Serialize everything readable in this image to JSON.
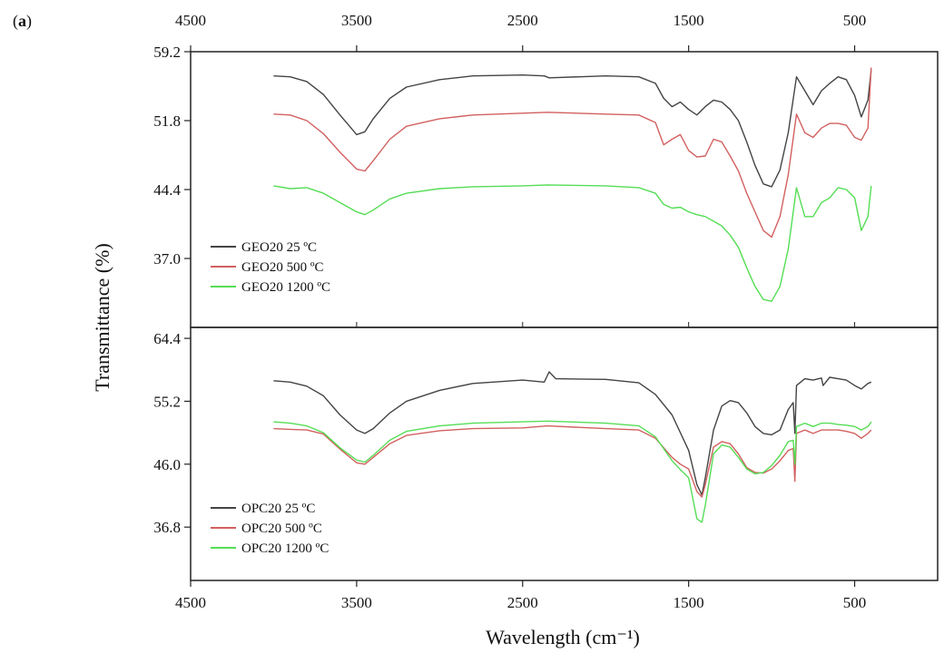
{
  "figure": {
    "panel_label_open": "(",
    "panel_label_letter": "a",
    "panel_label_close": ")"
  },
  "chart_data": {
    "type": "line",
    "xlabel": "Wavelength (cm⁻¹)",
    "ylabel": "Transmittance (%)",
    "x_reversed": true,
    "xlim": [
      4500,
      0
    ],
    "x_ticks": [
      4500,
      3500,
      2500,
      1500,
      500
    ],
    "x_tick_labels": [
      "4500",
      "3500",
      "2500",
      "1500",
      "500"
    ],
    "panels": [
      {
        "id": "top",
        "ylim": [
          29.6,
          59.2
        ],
        "y_ticks": [
          59.2,
          51.8,
          44.4,
          37.0
        ],
        "y_tick_labels": [
          "59.2",
          "51.8",
          "44.4",
          "37.0"
        ],
        "legend_position": "bottom-left",
        "series": [
          {
            "name": "GEO20 25 ºC",
            "color": "#444444",
            "x": [
              4000,
              3900,
              3800,
              3700,
              3600,
              3500,
              3450,
              3400,
              3300,
              3200,
              3000,
              2800,
              2500,
              2370,
              2340,
              2000,
              1800,
              1700,
              1650,
              1600,
              1550,
              1500,
              1450,
              1400,
              1350,
              1300,
              1250,
              1200,
              1150,
              1100,
              1050,
              1000,
              950,
              900,
              850,
              800,
              750,
              700,
              650,
              600,
              550,
              500,
              460,
              420,
              400
            ],
            "y": [
              56.6,
              56.5,
              56.0,
              54.6,
              52.4,
              50.3,
              50.6,
              52.0,
              54.2,
              55.4,
              56.2,
              56.6,
              56.7,
              56.6,
              56.4,
              56.6,
              56.5,
              55.8,
              54.2,
              53.3,
              53.8,
              53.0,
              52.4,
              53.3,
              54.0,
              53.8,
              53.0,
              51.8,
              49.5,
              47.0,
              45.0,
              44.7,
              46.5,
              50.5,
              56.5,
              55.0,
              53.5,
              55.0,
              55.8,
              56.5,
              56.2,
              54.5,
              52.2,
              54.0,
              57.2
            ]
          },
          {
            "name": "GEO20 500 ºC",
            "color": "#d26060",
            "x": [
              4000,
              3900,
              3800,
              3700,
              3600,
              3500,
              3450,
              3400,
              3300,
              3200,
              3000,
              2800,
              2500,
              2350,
              2000,
              1800,
              1700,
              1650,
              1600,
              1550,
              1500,
              1450,
              1400,
              1350,
              1300,
              1250,
              1200,
              1150,
              1100,
              1050,
              1000,
              950,
              900,
              850,
              800,
              750,
              700,
              650,
              600,
              550,
              500,
              460,
              420,
              400
            ],
            "y": [
              52.5,
              52.4,
              51.8,
              50.4,
              48.4,
              46.6,
              46.4,
              47.5,
              49.8,
              51.2,
              52.0,
              52.4,
              52.6,
              52.7,
              52.5,
              52.4,
              51.6,
              49.2,
              49.8,
              50.3,
              48.6,
              47.9,
              48.0,
              49.8,
              49.5,
              48.0,
              46.4,
              44.0,
              42.0,
              40.0,
              39.3,
              41.5,
              46.0,
              52.5,
              50.5,
              50.0,
              51.0,
              51.5,
              51.5,
              51.3,
              50.0,
              49.7,
              51.0,
              57.5
            ]
          },
          {
            "name": "GEO20 1200 ºC",
            "color": "#55dd55",
            "x": [
              4000,
              3900,
              3800,
              3700,
              3600,
              3500,
              3450,
              3400,
              3300,
              3200,
              3000,
              2800,
              2500,
              2350,
              2000,
              1800,
              1700,
              1650,
              1600,
              1550,
              1500,
              1450,
              1400,
              1350,
              1300,
              1250,
              1200,
              1150,
              1100,
              1050,
              1000,
              950,
              900,
              850,
              800,
              750,
              700,
              650,
              600,
              550,
              500,
              460,
              420,
              400
            ],
            "y": [
              44.8,
              44.5,
              44.6,
              44.0,
              43.0,
              42.0,
              41.7,
              42.2,
              43.4,
              44.0,
              44.5,
              44.7,
              44.8,
              44.9,
              44.8,
              44.6,
              44.0,
              42.8,
              42.4,
              42.5,
              42.0,
              41.7,
              41.5,
              41.0,
              40.5,
              39.5,
              38.2,
              36.0,
              34.0,
              32.6,
              32.4,
              34.0,
              38.0,
              44.6,
              41.5,
              41.5,
              43.0,
              43.5,
              44.6,
              44.4,
              43.5,
              40.0,
              41.5,
              44.8
            ]
          }
        ]
      },
      {
        "id": "bottom",
        "ylim": [
          29.0,
          66.0
        ],
        "y_ticks": [
          64.4,
          55.2,
          46.0,
          36.8
        ],
        "y_tick_labels": [
          "64.4",
          "55.2",
          "46.0",
          "36.8"
        ],
        "legend_position": "bottom-left",
        "series": [
          {
            "name": "OPC20 25 ºC",
            "color": "#444444",
            "x": [
              4000,
              3900,
              3800,
              3700,
              3600,
              3500,
              3450,
              3400,
              3300,
              3200,
              3000,
              2800,
              2500,
              2370,
              2340,
              2300,
              2000,
              1800,
              1700,
              1600,
              1500,
              1450,
              1420,
              1400,
              1350,
              1300,
              1250,
              1200,
              1150,
              1100,
              1050,
              1000,
              950,
              900,
              870,
              860,
              850,
              800,
              750,
              700,
              690,
              650,
              600,
              550,
              500,
              460,
              420,
              400
            ],
            "y": [
              58.2,
              58.0,
              57.4,
              56.0,
              53.2,
              51.0,
              50.5,
              51.2,
              53.5,
              55.2,
              56.8,
              57.8,
              58.3,
              58.0,
              59.5,
              58.5,
              58.4,
              57.9,
              56.2,
              53.2,
              48.0,
              43.0,
              41.5,
              44.0,
              51.0,
              54.5,
              55.3,
              55.0,
              53.5,
              51.5,
              50.5,
              50.3,
              51.0,
              54.0,
              55.0,
              50.5,
              57.5,
              58.5,
              58.3,
              58.6,
              57.5,
              58.7,
              58.5,
              58.3,
              57.5,
              57.0,
              57.8,
              58.0
            ]
          },
          {
            "name": "OPC20 500 ºC",
            "color": "#d26060",
            "x": [
              4000,
              3900,
              3800,
              3700,
              3600,
              3500,
              3450,
              3400,
              3300,
              3200,
              3000,
              2800,
              2500,
              2350,
              2000,
              1800,
              1700,
              1600,
              1550,
              1500,
              1450,
              1420,
              1400,
              1350,
              1300,
              1250,
              1200,
              1150,
              1100,
              1050,
              1000,
              950,
              900,
              870,
              860,
              850,
              800,
              750,
              700,
              650,
              600,
              550,
              500,
              460,
              420,
              400
            ],
            "y": [
              51.2,
              51.1,
              51.0,
              50.4,
              48.2,
              46.2,
              46.0,
              47.0,
              49.0,
              50.2,
              50.9,
              51.2,
              51.3,
              51.6,
              51.2,
              51.0,
              49.8,
              47.0,
              46.0,
              45.3,
              42.0,
              41.2,
              43.0,
              48.5,
              49.3,
              49.0,
              47.5,
              45.5,
              44.8,
              44.7,
              45.3,
              46.5,
              48.0,
              48.3,
              43.5,
              50.5,
              51.0,
              50.5,
              51.0,
              51.0,
              51.0,
              50.8,
              50.5,
              49.8,
              50.5,
              51.0
            ]
          },
          {
            "name": "OPC20 1200 ºC",
            "color": "#55dd55",
            "x": [
              4000,
              3900,
              3800,
              3700,
              3600,
              3500,
              3450,
              3400,
              3300,
              3200,
              3000,
              2800,
              2500,
              2350,
              2000,
              1800,
              1700,
              1600,
              1550,
              1500,
              1450,
              1420,
              1400,
              1350,
              1300,
              1250,
              1200,
              1150,
              1100,
              1050,
              1000,
              950,
              900,
              870,
              860,
              850,
              800,
              750,
              700,
              650,
              600,
              550,
              500,
              460,
              420,
              400
            ],
            "y": [
              52.2,
              52.0,
              51.6,
              50.6,
              48.4,
              46.6,
              46.3,
              47.3,
              49.5,
              50.8,
              51.6,
              52.0,
              52.2,
              52.3,
              52.0,
              51.6,
              50.0,
              46.5,
              45.2,
              44.0,
              38.0,
              37.5,
              40.0,
              47.5,
              48.8,
              48.5,
              47.0,
              45.3,
              44.6,
              44.8,
              45.8,
              47.3,
              49.3,
              49.5,
              46.0,
              51.5,
              52.0,
              51.5,
              52.0,
              52.0,
              51.8,
              51.7,
              51.5,
              51.0,
              51.5,
              52.2
            ]
          }
        ]
      }
    ]
  }
}
